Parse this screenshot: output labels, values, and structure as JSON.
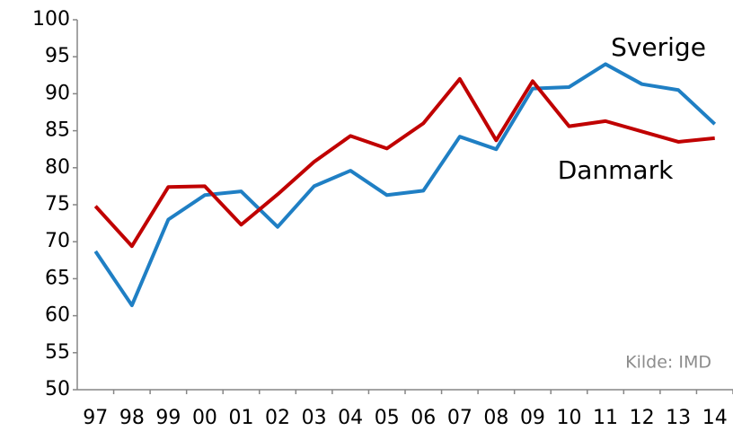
{
  "chart_data": {
    "type": "line",
    "categories": [
      "97",
      "98",
      "99",
      "00",
      "01",
      "02",
      "03",
      "04",
      "05",
      "06",
      "07",
      "08",
      "09",
      "10",
      "11",
      "12",
      "13",
      "14"
    ],
    "series": [
      {
        "name": "Sverige",
        "color": "#1f7fc4",
        "values": [
          68.7,
          61.4,
          73.0,
          76.3,
          76.8,
          72.0,
          77.5,
          79.6,
          76.3,
          76.9,
          84.2,
          82.5,
          90.7,
          90.9,
          94.0,
          91.3,
          90.5,
          85.9
        ]
      },
      {
        "name": "Danmark",
        "color": "#c00000",
        "values": [
          74.8,
          69.4,
          77.4,
          77.5,
          72.3,
          76.4,
          80.8,
          84.3,
          82.6,
          86.0,
          92.0,
          83.7,
          91.7,
          85.6,
          86.3,
          84.9,
          83.5,
          84.0
        ]
      }
    ],
    "source": "Kilde: IMD",
    "ylim": [
      50,
      100
    ],
    "yticks": [
      50,
      55,
      60,
      65,
      70,
      75,
      80,
      85,
      90,
      95,
      100
    ]
  }
}
